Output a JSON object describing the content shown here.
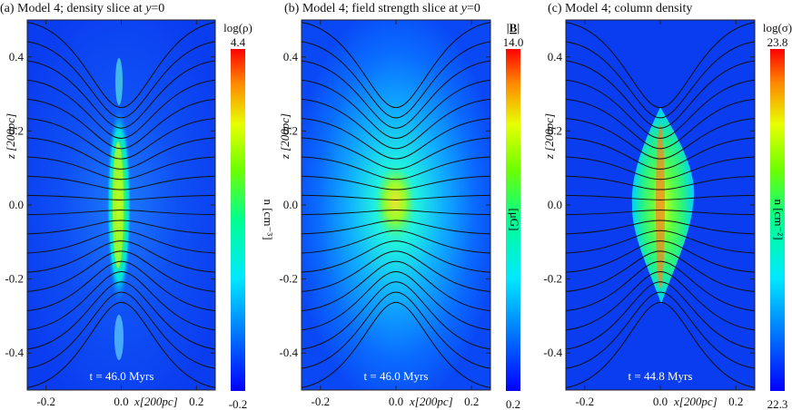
{
  "chart_data": [
    {
      "type": "heatmap",
      "title": "(a) Model 4; density slice at y=0",
      "title_parts": [
        "(a) Model 4; density slice at ",
        "y",
        "=0"
      ],
      "xlabel": "x[200pc]",
      "ylabel": "z [200pc]",
      "xlim": [
        -0.25,
        0.25
      ],
      "ylim": [
        -0.5,
        0.5
      ],
      "xticks": [
        -0.2,
        0.0,
        0.2
      ],
      "xtick_labels": [
        "-0.2",
        "0.0",
        "0.2"
      ],
      "yticks": [
        -0.4,
        -0.2,
        0.0,
        0.2,
        0.4
      ],
      "ytick_labels": [
        "-0.4",
        "-0.2",
        "0.0",
        "0.2",
        "0.4"
      ],
      "annotation": "t = 46.0 Myrs",
      "colorbar": {
        "label_top": "log(ρ)",
        "max": 4.4,
        "min": -0.2,
        "max_label": "4.4",
        "min_label": "-0.2",
        "unit": "n [cm⁻³]"
      },
      "structure": "thin vertical filament along z-axis"
    },
    {
      "type": "heatmap",
      "title": "(b) Model 4; field strength slice at y=0",
      "title_parts": [
        "(b) Model 4; field strength slice at ",
        "y",
        "=0"
      ],
      "xlabel": "x[200pc]",
      "ylabel": "z [200pc]",
      "xlim": [
        -0.25,
        0.25
      ],
      "ylim": [
        -0.5,
        0.5
      ],
      "xticks": [
        -0.2,
        0.0,
        0.2
      ],
      "xtick_labels": [
        "-0.2",
        "0.0",
        "0.2"
      ],
      "yticks": [
        -0.4,
        -0.2,
        0.0,
        0.2,
        0.4
      ],
      "ytick_labels": [
        "-0.4",
        "-0.2",
        "0.0",
        "0.2",
        "0.4"
      ],
      "annotation": "t = 46.0 Myrs",
      "colorbar": {
        "label_top": "|B|",
        "max": 14.0,
        "min": 0.2,
        "max_label": "14.0",
        "min_label": "0.2",
        "unit": "[μG]"
      },
      "structure": "broad enhancement centered on origin"
    },
    {
      "type": "heatmap",
      "title": "(c) Model 4; column density",
      "title_parts": [
        "(c) Model 4; column density",
        "",
        ""
      ],
      "xlabel": "x[200pc]",
      "ylabel": "z [200pc]",
      "xlim": [
        -0.25,
        0.25
      ],
      "ylim": [
        -0.5,
        0.5
      ],
      "xticks": [
        -0.2,
        0.0,
        0.2
      ],
      "xtick_labels": [
        "-0.2",
        "0.0",
        "0.2"
      ],
      "yticks": [
        -0.4,
        -0.2,
        0.0,
        0.2,
        0.4
      ],
      "ytick_labels": [
        "-0.4",
        "-0.2",
        "0.0",
        "0.2",
        "0.4"
      ],
      "annotation": "t = 44.8 Myrs",
      "colorbar": {
        "label_top": "log(σ)",
        "max": 23.8,
        "min": 22.3,
        "max_label": "23.8",
        "min_label": "22.3",
        "unit": "n [cm⁻²]"
      },
      "structure": "lens-shaped cloud centered on origin"
    }
  ],
  "colors": {
    "background_field": "#0a3cf0",
    "field_lines": "#111111",
    "colormap": [
      "#0000ff",
      "#0070ff",
      "#00e0ff",
      "#00ff90",
      "#60ff00",
      "#e0ff00",
      "#ff8000",
      "#ff0000"
    ]
  }
}
